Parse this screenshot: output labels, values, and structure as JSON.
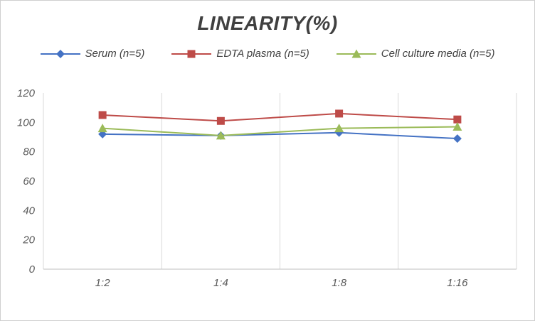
{
  "chart_data": {
    "type": "line",
    "title": "LINEARITY(%)",
    "categories": [
      "1:2",
      "1:4",
      "1:8",
      "1:16"
    ],
    "xlabel": "",
    "ylabel": "",
    "ylim": [
      0,
      120
    ],
    "yticks": [
      0,
      20,
      40,
      60,
      80,
      100,
      120
    ],
    "grid": "vertical-only",
    "legend_position": "top",
    "series": [
      {
        "name": "Serum (n=5)",
        "marker": "diamond",
        "color": "#4472C4",
        "values": [
          92,
          91,
          93,
          89
        ]
      },
      {
        "name": "EDTA plasma (n=5)",
        "marker": "square",
        "color": "#BE4B48",
        "values": [
          105,
          101,
          106,
          102
        ]
      },
      {
        "name": "Cell culture media (n=5)",
        "marker": "triangle",
        "color": "#9BBB59",
        "values": [
          96,
          91,
          96,
          97
        ]
      }
    ],
    "colors": {
      "gridline": "#d9d9d9",
      "axis_line": "#bfbfbf",
      "tick_label": "#595959"
    }
  }
}
